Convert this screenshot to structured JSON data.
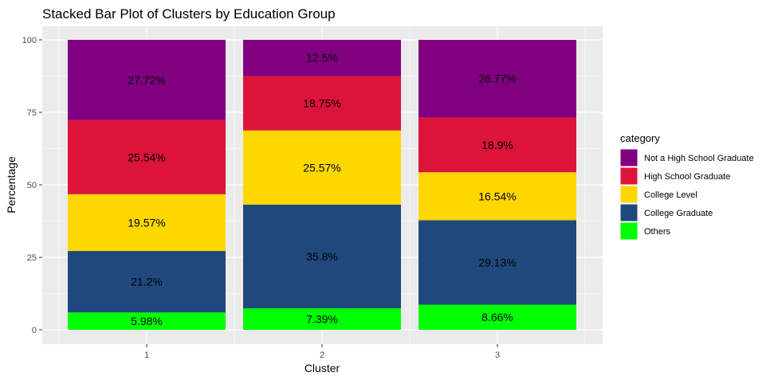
{
  "chart_data": {
    "type": "bar",
    "stacked": true,
    "title": "Stacked Bar Plot of Clusters by Education Group",
    "xlabel": "Cluster",
    "ylabel": "Percentage",
    "categories": [
      "1",
      "2",
      "3"
    ],
    "ylim": [
      0,
      100
    ],
    "yticks": [
      0,
      25,
      50,
      75,
      100
    ],
    "grid": true,
    "legend_title": "category",
    "legend_position": "right",
    "series": [
      {
        "name": "Not a High School Graduate",
        "color": "#800080",
        "values": [
          27.72,
          12.5,
          26.77
        ],
        "labels": [
          "27.72%",
          "12.5%",
          "26.77%"
        ]
      },
      {
        "name": "High School Graduate",
        "color": "#DC143C",
        "values": [
          25.54,
          18.75,
          18.9
        ],
        "labels": [
          "25.54%",
          "18.75%",
          "18.9%"
        ]
      },
      {
        "name": "College Level",
        "color": "#FFD700",
        "values": [
          19.57,
          25.57,
          16.54
        ],
        "labels": [
          "19.57%",
          "25.57%",
          "16.54%"
        ]
      },
      {
        "name": "College Graduate",
        "color": "#1F497D",
        "values": [
          21.2,
          35.8,
          29.13
        ],
        "labels": [
          "21.2%",
          "35.8%",
          "29.13%"
        ]
      },
      {
        "name": "Others",
        "color": "#00FF00",
        "values": [
          5.98,
          7.39,
          8.66
        ],
        "labels": [
          "5.98%",
          "7.39%",
          "8.66%"
        ]
      }
    ]
  }
}
